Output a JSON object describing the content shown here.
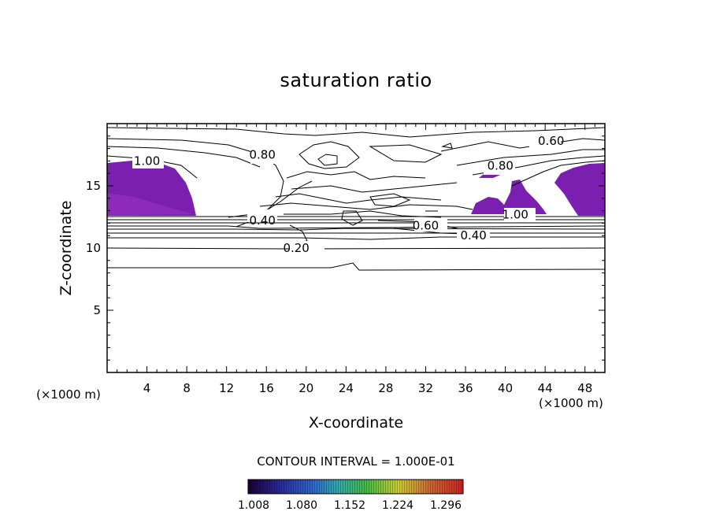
{
  "chart_data": {
    "type": "contour",
    "title": "saturation ratio",
    "xlabel": "X-coordinate",
    "ylabel": "Z-coordinate",
    "x_unit_label_left": "(×1000 m)",
    "x_unit_label_right": "(×1000 m)",
    "xlim": [
      0,
      50
    ],
    "ylim": [
      0,
      20
    ],
    "xticks": [
      4,
      8,
      12,
      16,
      20,
      24,
      28,
      32,
      36,
      40,
      44,
      48
    ],
    "yticks": [
      5,
      10,
      15
    ],
    "contour_labels": [
      {
        "text": "1.00",
        "x": 4.0,
        "z": 17.0
      },
      {
        "text": "0.80",
        "x": 15.6,
        "z": 17.5
      },
      {
        "text": "0.60",
        "x": 44.6,
        "z": 18.6
      },
      {
        "text": "0.80",
        "x": 39.5,
        "z": 16.6
      },
      {
        "text": "0.40",
        "x": 15.6,
        "z": 12.2
      },
      {
        "text": "1.00",
        "x": 41.0,
        "z": 12.7
      },
      {
        "text": "0.60",
        "x": 32.0,
        "z": 11.8
      },
      {
        "text": "0.40",
        "x": 36.8,
        "z": 11.0
      },
      {
        "text": "0.20",
        "x": 19.0,
        "z": 10.0
      }
    ],
    "contour_interval_label": "CONTOUR INTERVAL = 1.000E-01",
    "colorbar": {
      "tick_labels": [
        "1.008",
        "1.080",
        "1.152",
        "1.224",
        "1.296"
      ],
      "colors": [
        "#1a0033",
        "#3a1a80",
        "#3355cc",
        "#33aaaa",
        "#44bb44",
        "#cccc33",
        "#cc7733",
        "#cc2222"
      ]
    },
    "fill_color": "#7a1fb0"
  }
}
